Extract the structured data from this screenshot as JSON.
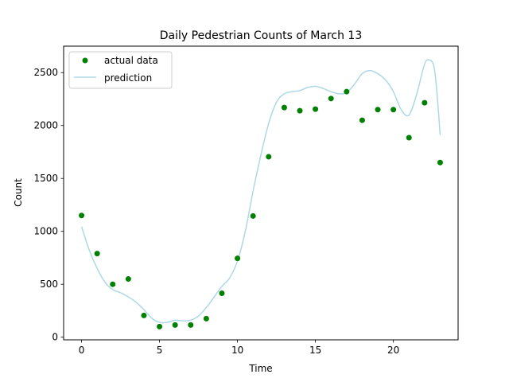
{
  "chart_data": {
    "type": "scatter",
    "title": "Daily Pedestrian Counts of March 13",
    "xlabel": "Time",
    "ylabel": "Count",
    "xlim": [
      -1.15,
      24.15
    ],
    "ylim": [
      -25,
      2750
    ],
    "xticks": [
      0,
      5,
      10,
      15,
      20
    ],
    "yticks": [
      0,
      500,
      1000,
      1500,
      2000,
      2500
    ],
    "grid": false,
    "legend": "top-left",
    "series": [
      {
        "name": "actual data",
        "kind": "scatter",
        "color": "#008000",
        "x": [
          0,
          1,
          2,
          3,
          4,
          5,
          6,
          7,
          8,
          9,
          10,
          11,
          12,
          13,
          14,
          15,
          16,
          17,
          18,
          19,
          20,
          21,
          22,
          23
        ],
        "y": [
          1150,
          790,
          500,
          550,
          205,
          100,
          115,
          115,
          175,
          415,
          745,
          1145,
          1705,
          2170,
          2140,
          2155,
          2255,
          2320,
          2050,
          2150,
          2150,
          1885,
          2215,
          1650
        ]
      },
      {
        "name": "prediction",
        "kind": "line",
        "color": "#add8e6",
        "x": [
          0,
          0.5,
          1,
          1.5,
          2,
          2.5,
          3,
          3.5,
          4,
          4.5,
          5,
          5.5,
          6,
          6.5,
          7,
          7.5,
          8,
          8.5,
          9,
          9.5,
          10,
          10.5,
          11,
          11.5,
          12,
          12.5,
          13,
          13.5,
          14,
          14.5,
          15,
          15.5,
          16,
          16.5,
          17,
          17.5,
          18,
          18.5,
          19,
          19.5,
          20,
          20.5,
          21,
          21.5,
          22,
          22.3,
          22.6,
          22.8,
          23
        ],
        "y": [
          1045,
          820,
          650,
          520,
          450,
          420,
          380,
          330,
          260,
          180,
          140,
          140,
          160,
          155,
          160,
          200,
          280,
          380,
          480,
          560,
          720,
          1000,
          1380,
          1720,
          2020,
          2220,
          2300,
          2320,
          2330,
          2360,
          2370,
          2350,
          2320,
          2300,
          2310,
          2390,
          2490,
          2520,
          2490,
          2430,
          2320,
          2150,
          2100,
          2300,
          2580,
          2620,
          2560,
          2300,
          1910
        ]
      }
    ]
  }
}
